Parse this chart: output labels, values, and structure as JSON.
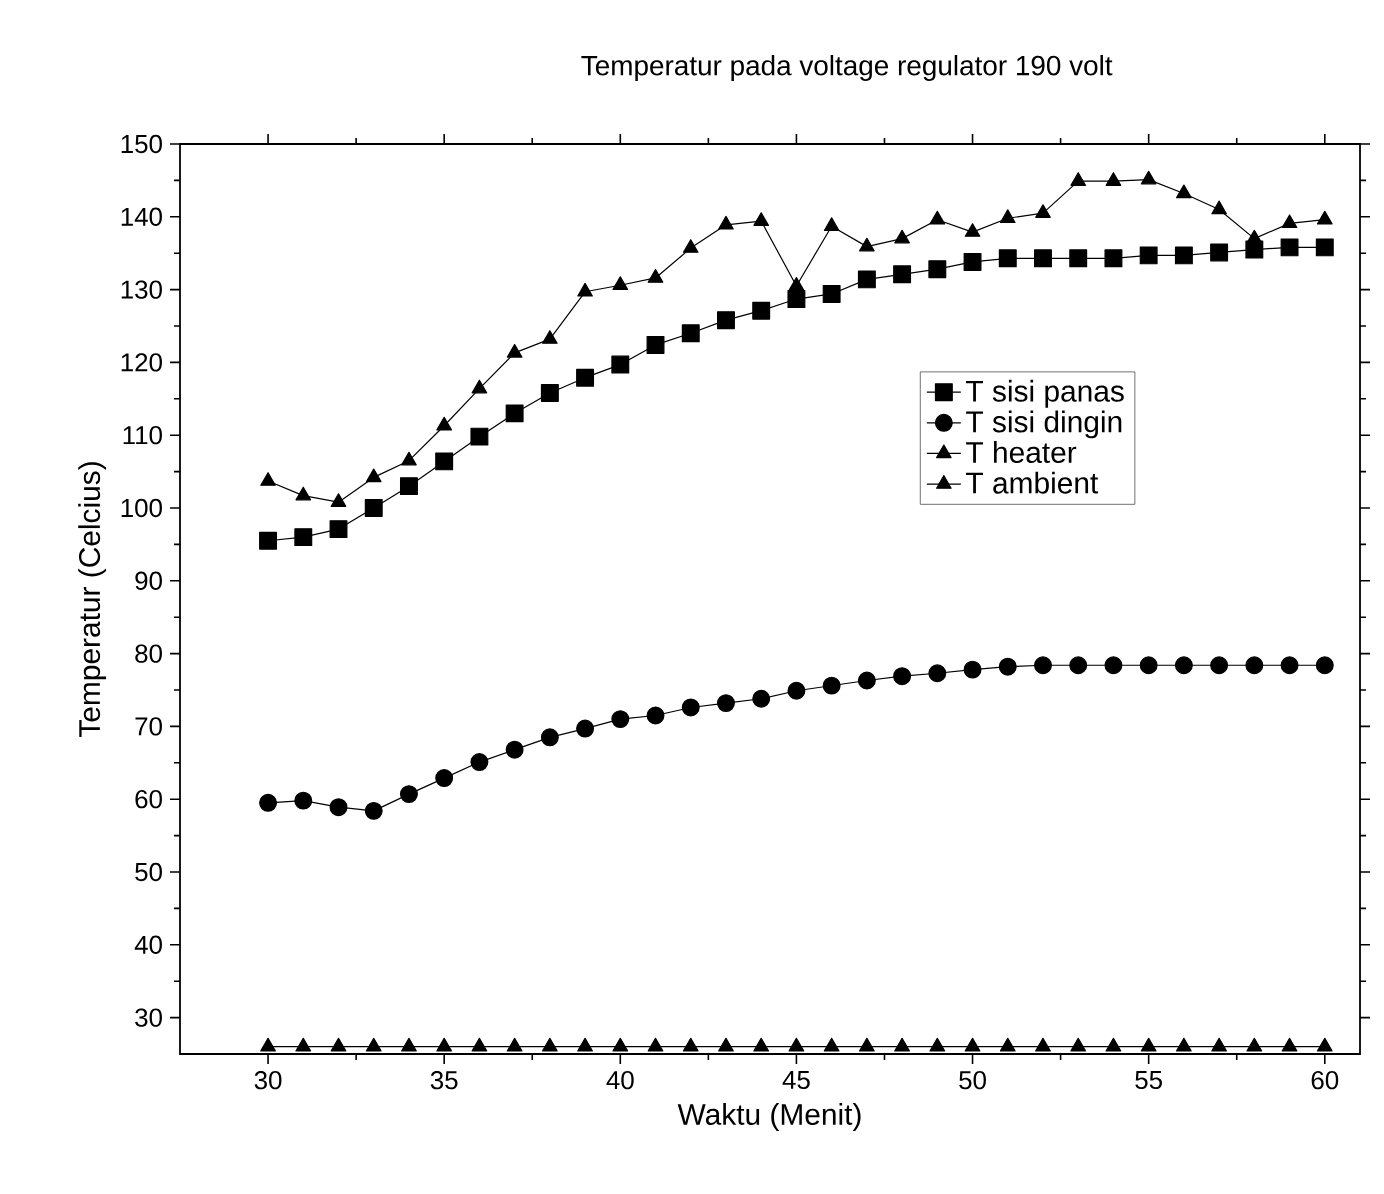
{
  "chart_data": {
    "type": "line",
    "title": "Temperatur pada voltage regulator 190 volt",
    "xlabel": "Waktu (Menit)",
    "ylabel": "Temperatur (Celcius)",
    "x": [
      30,
      31,
      32,
      33,
      34,
      35,
      36,
      37,
      38,
      39,
      40,
      41,
      42,
      43,
      44,
      45,
      46,
      47,
      48,
      49,
      50,
      51,
      52,
      53,
      54,
      55,
      56,
      57,
      58,
      59,
      60
    ],
    "series": [
      {
        "name": "T sisi panas",
        "color": "#000000",
        "marker": "square",
        "values": [
          95.5,
          96,
          97.1,
          100,
          103,
          106.4,
          109.8,
          113,
          115.8,
          117.9,
          119.7,
          122.4,
          124,
          125.8,
          127.1,
          128.7,
          129.4,
          131.4,
          132.1,
          132.8,
          133.8,
          134.3,
          134.3,
          134.3,
          134.3,
          134.7,
          134.7,
          135.1,
          135.5,
          135.8,
          135.8
        ]
      },
      {
        "name": "T sisi dingin",
        "color": "#000000",
        "marker": "circle",
        "values": [
          59.5,
          59.8,
          58.9,
          58.4,
          60.7,
          62.9,
          65.1,
          66.8,
          68.5,
          69.7,
          71,
          71.5,
          72.6,
          73.2,
          73.8,
          74.9,
          75.6,
          76.3,
          76.9,
          77.3,
          77.8,
          78.2,
          78.4,
          78.4,
          78.4,
          78.4,
          78.4,
          78.4,
          78.4,
          78.4,
          78.4
        ]
      },
      {
        "name": "T heater",
        "color": "#000000",
        "marker": "triangle",
        "values": [
          103.7,
          101.7,
          100.8,
          104.2,
          106.5,
          111.3,
          116.4,
          121.3,
          123.2,
          129.7,
          130.6,
          131.6,
          135.7,
          138.9,
          139.4,
          130.5,
          138.7,
          135.9,
          137,
          139.6,
          137.9,
          139.8,
          140.5,
          144.9,
          144.9,
          145.1,
          143.2,
          141,
          137,
          139.1,
          139.6
        ]
      },
      {
        "name": "T ambient",
        "color": "#000000",
        "marker": "triangle-down",
        "values": [
          26,
          26,
          26,
          26,
          26,
          26,
          26,
          26,
          26,
          26,
          26,
          26,
          26,
          26,
          26,
          26,
          26,
          26,
          26,
          26,
          26,
          26,
          26,
          26,
          26,
          26,
          26,
          26,
          26,
          26,
          26
        ]
      }
    ],
    "xlim": [
      27.5,
      61
    ],
    "ylim": [
      25,
      150
    ],
    "xticks": [
      30,
      35,
      40,
      45,
      50,
      55,
      60
    ],
    "yticks": [
      30,
      40,
      50,
      60,
      70,
      80,
      90,
      100,
      110,
      120,
      130,
      140,
      150
    ],
    "legend": "right",
    "grid": false,
    "line_style": "solid"
  }
}
